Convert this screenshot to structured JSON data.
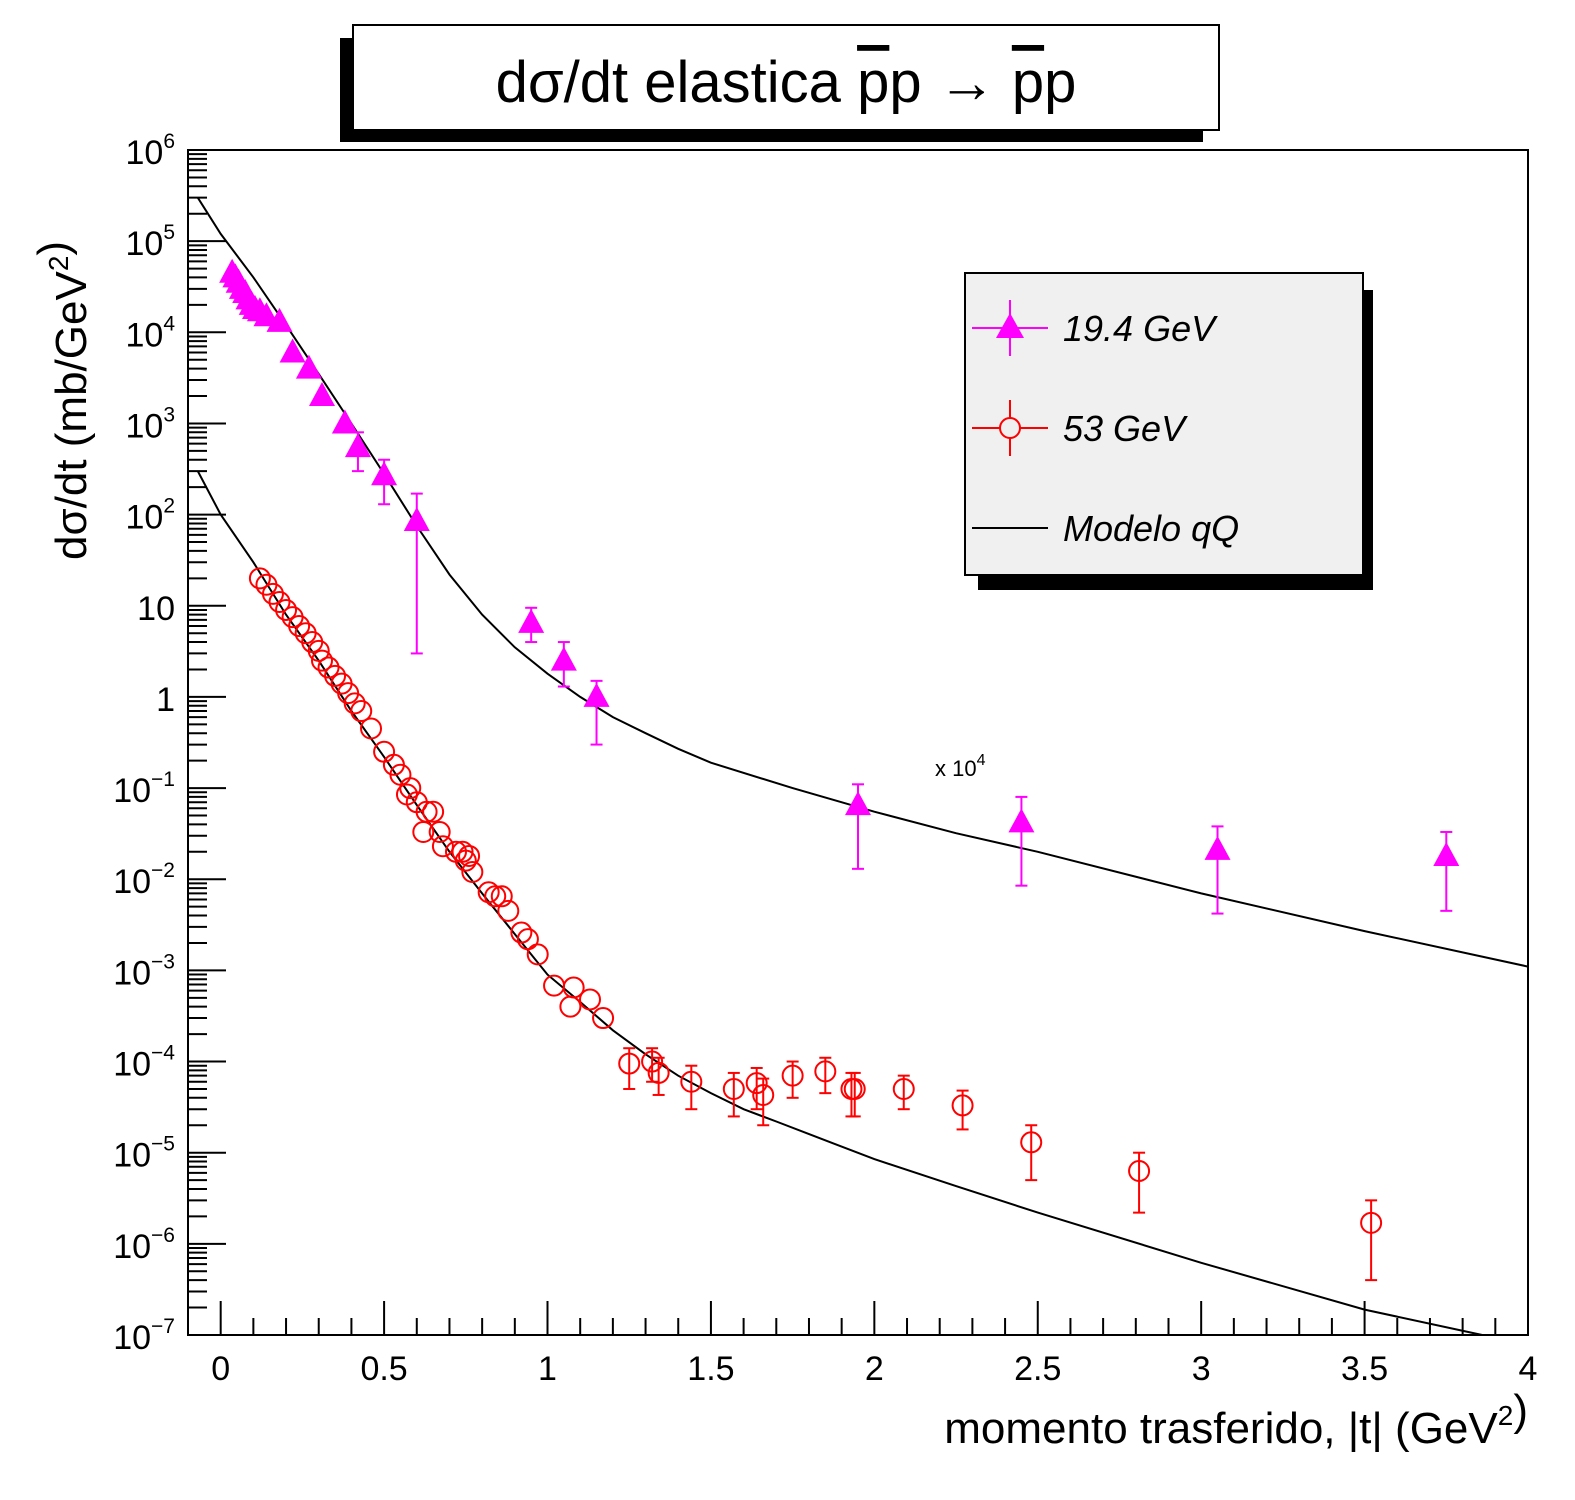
{
  "chart_data": {
    "type": "scatter",
    "title": "dσ/dt elastica p̄p → p̄p",
    "xlabel": "momento trasferido, |t| (GeV²)",
    "ylabel": "dσ/dt (mb/GeV²)",
    "xlim": [
      -0.1,
      4.0
    ],
    "ylim": [
      1e-07,
      1000000.0
    ],
    "yscale": "log",
    "grid": false,
    "legend_position": "top-right",
    "x_ticks": [
      {
        "value": 0,
        "label": "0"
      },
      {
        "value": 0.5,
        "label": "0.5"
      },
      {
        "value": 1,
        "label": "1"
      },
      {
        "value": 1.5,
        "label": "1.5"
      },
      {
        "value": 2,
        "label": "2"
      },
      {
        "value": 2.5,
        "label": "2.5"
      },
      {
        "value": 3,
        "label": "3"
      },
      {
        "value": 3.5,
        "label": "3.5"
      },
      {
        "value": 4,
        "label": "4"
      }
    ],
    "y_ticks": [
      {
        "value": 1000000.0,
        "base": "10",
        "exp": "6"
      },
      {
        "value": 100000.0,
        "base": "10",
        "exp": "5"
      },
      {
        "value": 10000.0,
        "base": "10",
        "exp": "4"
      },
      {
        "value": 1000.0,
        "base": "10",
        "exp": "3"
      },
      {
        "value": 100.0,
        "base": "10",
        "exp": "2"
      },
      {
        "value": 10,
        "base": "10",
        "exp": ""
      },
      {
        "value": 1,
        "base": "1",
        "exp": ""
      },
      {
        "value": 0.1,
        "base": "10",
        "exp": "−1"
      },
      {
        "value": 0.01,
        "base": "10",
        "exp": "−2"
      },
      {
        "value": 0.001,
        "base": "10",
        "exp": "−3"
      },
      {
        "value": 0.0001,
        "base": "10",
        "exp": "−4"
      },
      {
        "value": 1e-05,
        "base": "10",
        "exp": "−5"
      },
      {
        "value": 1e-06,
        "base": "10",
        "exp": "−6"
      },
      {
        "value": 1e-07,
        "base": "10",
        "exp": "−7"
      }
    ],
    "annotation": {
      "text": "x 10",
      "exp": "4",
      "x": 2.3,
      "y": 0.13
    },
    "series": [
      {
        "name": "19.4 GeV",
        "marker": "triangle-filled",
        "color": "#ff00ff",
        "points": [
          {
            "x": 0.035,
            "y": 45000
          },
          {
            "x": 0.045,
            "y": 40000
          },
          {
            "x": 0.055,
            "y": 35000
          },
          {
            "x": 0.065,
            "y": 30000
          },
          {
            "x": 0.075,
            "y": 27000
          },
          {
            "x": 0.085,
            "y": 23000
          },
          {
            "x": 0.095,
            "y": 20000
          },
          {
            "x": 0.105,
            "y": 18000
          },
          {
            "x": 0.12,
            "y": 17000
          },
          {
            "x": 0.14,
            "y": 15000
          },
          {
            "x": 0.18,
            "y": 13000
          },
          {
            "x": 0.22,
            "y": 6000
          },
          {
            "x": 0.27,
            "y": 4000
          },
          {
            "x": 0.31,
            "y": 2000
          },
          {
            "x": 0.38,
            "y": 1000
          },
          {
            "x": 0.42,
            "y": 550,
            "lo": 300,
            "hi": 800
          },
          {
            "x": 0.5,
            "y": 270,
            "lo": 130,
            "hi": 400
          },
          {
            "x": 0.6,
            "y": 85,
            "lo": 3,
            "hi": 170
          },
          {
            "x": 0.95,
            "y": 6.5,
            "lo": 4,
            "hi": 9.5
          },
          {
            "x": 1.05,
            "y": 2.5,
            "lo": 1.3,
            "hi": 4
          },
          {
            "x": 1.15,
            "y": 1.0,
            "lo": 0.3,
            "hi": 1.5
          },
          {
            "x": 1.95,
            "y": 0.065,
            "lo": 0.013,
            "hi": 0.11
          },
          {
            "x": 2.45,
            "y": 0.042,
            "lo": 0.0085,
            "hi": 0.08
          },
          {
            "x": 3.05,
            "y": 0.021,
            "lo": 0.0042,
            "hi": 0.038
          },
          {
            "x": 3.75,
            "y": 0.018,
            "lo": 0.0045,
            "hi": 0.033
          }
        ]
      },
      {
        "name": "53 GeV",
        "marker": "circle-open",
        "color": "#ff0000",
        "points": [
          {
            "x": 0.12,
            "y": 20
          },
          {
            "x": 0.14,
            "y": 17
          },
          {
            "x": 0.16,
            "y": 13.5
          },
          {
            "x": 0.18,
            "y": 11
          },
          {
            "x": 0.2,
            "y": 9
          },
          {
            "x": 0.22,
            "y": 7.5
          },
          {
            "x": 0.24,
            "y": 6
          },
          {
            "x": 0.26,
            "y": 5
          },
          {
            "x": 0.28,
            "y": 4
          },
          {
            "x": 0.3,
            "y": 3.2
          },
          {
            "x": 0.31,
            "y": 2.5
          },
          {
            "x": 0.33,
            "y": 2.1
          },
          {
            "x": 0.35,
            "y": 1.7
          },
          {
            "x": 0.37,
            "y": 1.4
          },
          {
            "x": 0.39,
            "y": 1.1
          },
          {
            "x": 0.41,
            "y": 0.85
          },
          {
            "x": 0.43,
            "y": 0.7
          },
          {
            "x": 0.46,
            "y": 0.45
          },
          {
            "x": 0.5,
            "y": 0.25
          },
          {
            "x": 0.53,
            "y": 0.18
          },
          {
            "x": 0.55,
            "y": 0.14
          },
          {
            "x": 0.58,
            "y": 0.1
          },
          {
            "x": 0.57,
            "y": 0.085
          },
          {
            "x": 0.6,
            "y": 0.07
          },
          {
            "x": 0.63,
            "y": 0.055
          },
          {
            "x": 0.65,
            "y": 0.055
          },
          {
            "x": 0.62,
            "y": 0.033
          },
          {
            "x": 0.67,
            "y": 0.033
          },
          {
            "x": 0.68,
            "y": 0.023
          },
          {
            "x": 0.72,
            "y": 0.02
          },
          {
            "x": 0.74,
            "y": 0.02
          },
          {
            "x": 0.76,
            "y": 0.018
          },
          {
            "x": 0.75,
            "y": 0.016
          },
          {
            "x": 0.77,
            "y": 0.012
          },
          {
            "x": 0.82,
            "y": 0.0072
          },
          {
            "x": 0.84,
            "y": 0.0065
          },
          {
            "x": 0.86,
            "y": 0.0065
          },
          {
            "x": 0.88,
            "y": 0.0045
          },
          {
            "x": 0.92,
            "y": 0.0026
          },
          {
            "x": 0.94,
            "y": 0.0022
          },
          {
            "x": 0.97,
            "y": 0.0015
          },
          {
            "x": 1.02,
            "y": 0.00068
          },
          {
            "x": 1.07,
            "y": 0.0004
          },
          {
            "x": 1.08,
            "y": 0.00065
          },
          {
            "x": 1.13,
            "y": 0.00048
          },
          {
            "x": 1.17,
            "y": 0.0003
          },
          {
            "x": 1.25,
            "y": 9.5e-05,
            "lo": 5e-05,
            "hi": 0.00014
          },
          {
            "x": 1.32,
            "y": 0.0001,
            "lo": 6e-05,
            "hi": 0.00014
          },
          {
            "x": 1.34,
            "y": 7.5e-05,
            "lo": 4.3e-05,
            "hi": 0.00011
          },
          {
            "x": 1.44,
            "y": 6e-05,
            "lo": 3e-05,
            "hi": 9e-05
          },
          {
            "x": 1.57,
            "y": 5e-05,
            "lo": 2.5e-05,
            "hi": 7.5e-05
          },
          {
            "x": 1.64,
            "y": 5.8e-05,
            "lo": 3e-05,
            "hi": 8.5e-05
          },
          {
            "x": 1.66,
            "y": 4.3e-05,
            "lo": 2e-05,
            "hi": 6.5e-05
          },
          {
            "x": 1.75,
            "y": 7e-05,
            "lo": 4e-05,
            "hi": 0.0001
          },
          {
            "x": 1.85,
            "y": 7.8e-05,
            "lo": 4.5e-05,
            "hi": 0.00011
          },
          {
            "x": 1.93,
            "y": 5e-05,
            "lo": 2.5e-05,
            "hi": 7.5e-05
          },
          {
            "x": 1.94,
            "y": 5e-05,
            "lo": 2.5e-05,
            "hi": 7.5e-05
          },
          {
            "x": 2.09,
            "y": 5e-05,
            "lo": 3e-05,
            "hi": 7e-05
          },
          {
            "x": 2.27,
            "y": 3.3e-05,
            "lo": 1.8e-05,
            "hi": 4.8e-05
          },
          {
            "x": 2.48,
            "y": 1.3e-05,
            "lo": 5e-06,
            "hi": 2e-05
          },
          {
            "x": 2.81,
            "y": 6.3e-06,
            "lo": 2.2e-06,
            "hi": 1e-05
          },
          {
            "x": 3.52,
            "y": 1.7e-06,
            "lo": 4e-07,
            "hi": 3e-06
          }
        ]
      },
      {
        "name": "Modelo qQ",
        "marker": "line",
        "color": "#000000",
        "curves": [
          {
            "x": [
              -0.07,
              0.0,
              0.1,
              0.2,
              0.3,
              0.4,
              0.5,
              0.6,
              0.7,
              0.8,
              0.9,
              1.0,
              1.1,
              1.2,
              1.3,
              1.4,
              1.5,
              1.75,
              2.0,
              2.25,
              2.5,
              3.0,
              3.5,
              4.0
            ],
            "y": [
              300000,
              120000,
              40000,
              12000,
              3500,
              1000,
              280,
              75,
              22,
              8,
              3.5,
              1.8,
              1.0,
              0.6,
              0.4,
              0.27,
              0.19,
              0.1,
              0.055,
              0.032,
              0.02,
              0.007,
              0.0027,
              0.0011
            ]
          },
          {
            "x": [
              -0.07,
              0.0,
              0.1,
              0.2,
              0.3,
              0.4,
              0.5,
              0.6,
              0.7,
              0.8,
              0.9,
              1.0,
              1.1,
              1.2,
              1.3,
              1.4,
              1.5,
              1.6,
              1.7,
              1.8,
              2.0,
              2.25,
              2.5,
              3.0,
              3.5,
              3.86
            ],
            "y": [
              300,
              100,
              30,
              8,
              2.5,
              0.7,
              0.22,
              0.065,
              0.02,
              0.007,
              0.0025,
              0.0009,
              0.00045,
              0.00022,
              0.00012,
              7e-05,
              4.5e-05,
              3e-05,
              2.2e-05,
              1.6e-05,
              8.5e-06,
              4.3e-06,
              2.2e-06,
              6.2e-07,
              1.9e-07,
              1e-07
            ]
          }
        ]
      }
    ]
  }
}
